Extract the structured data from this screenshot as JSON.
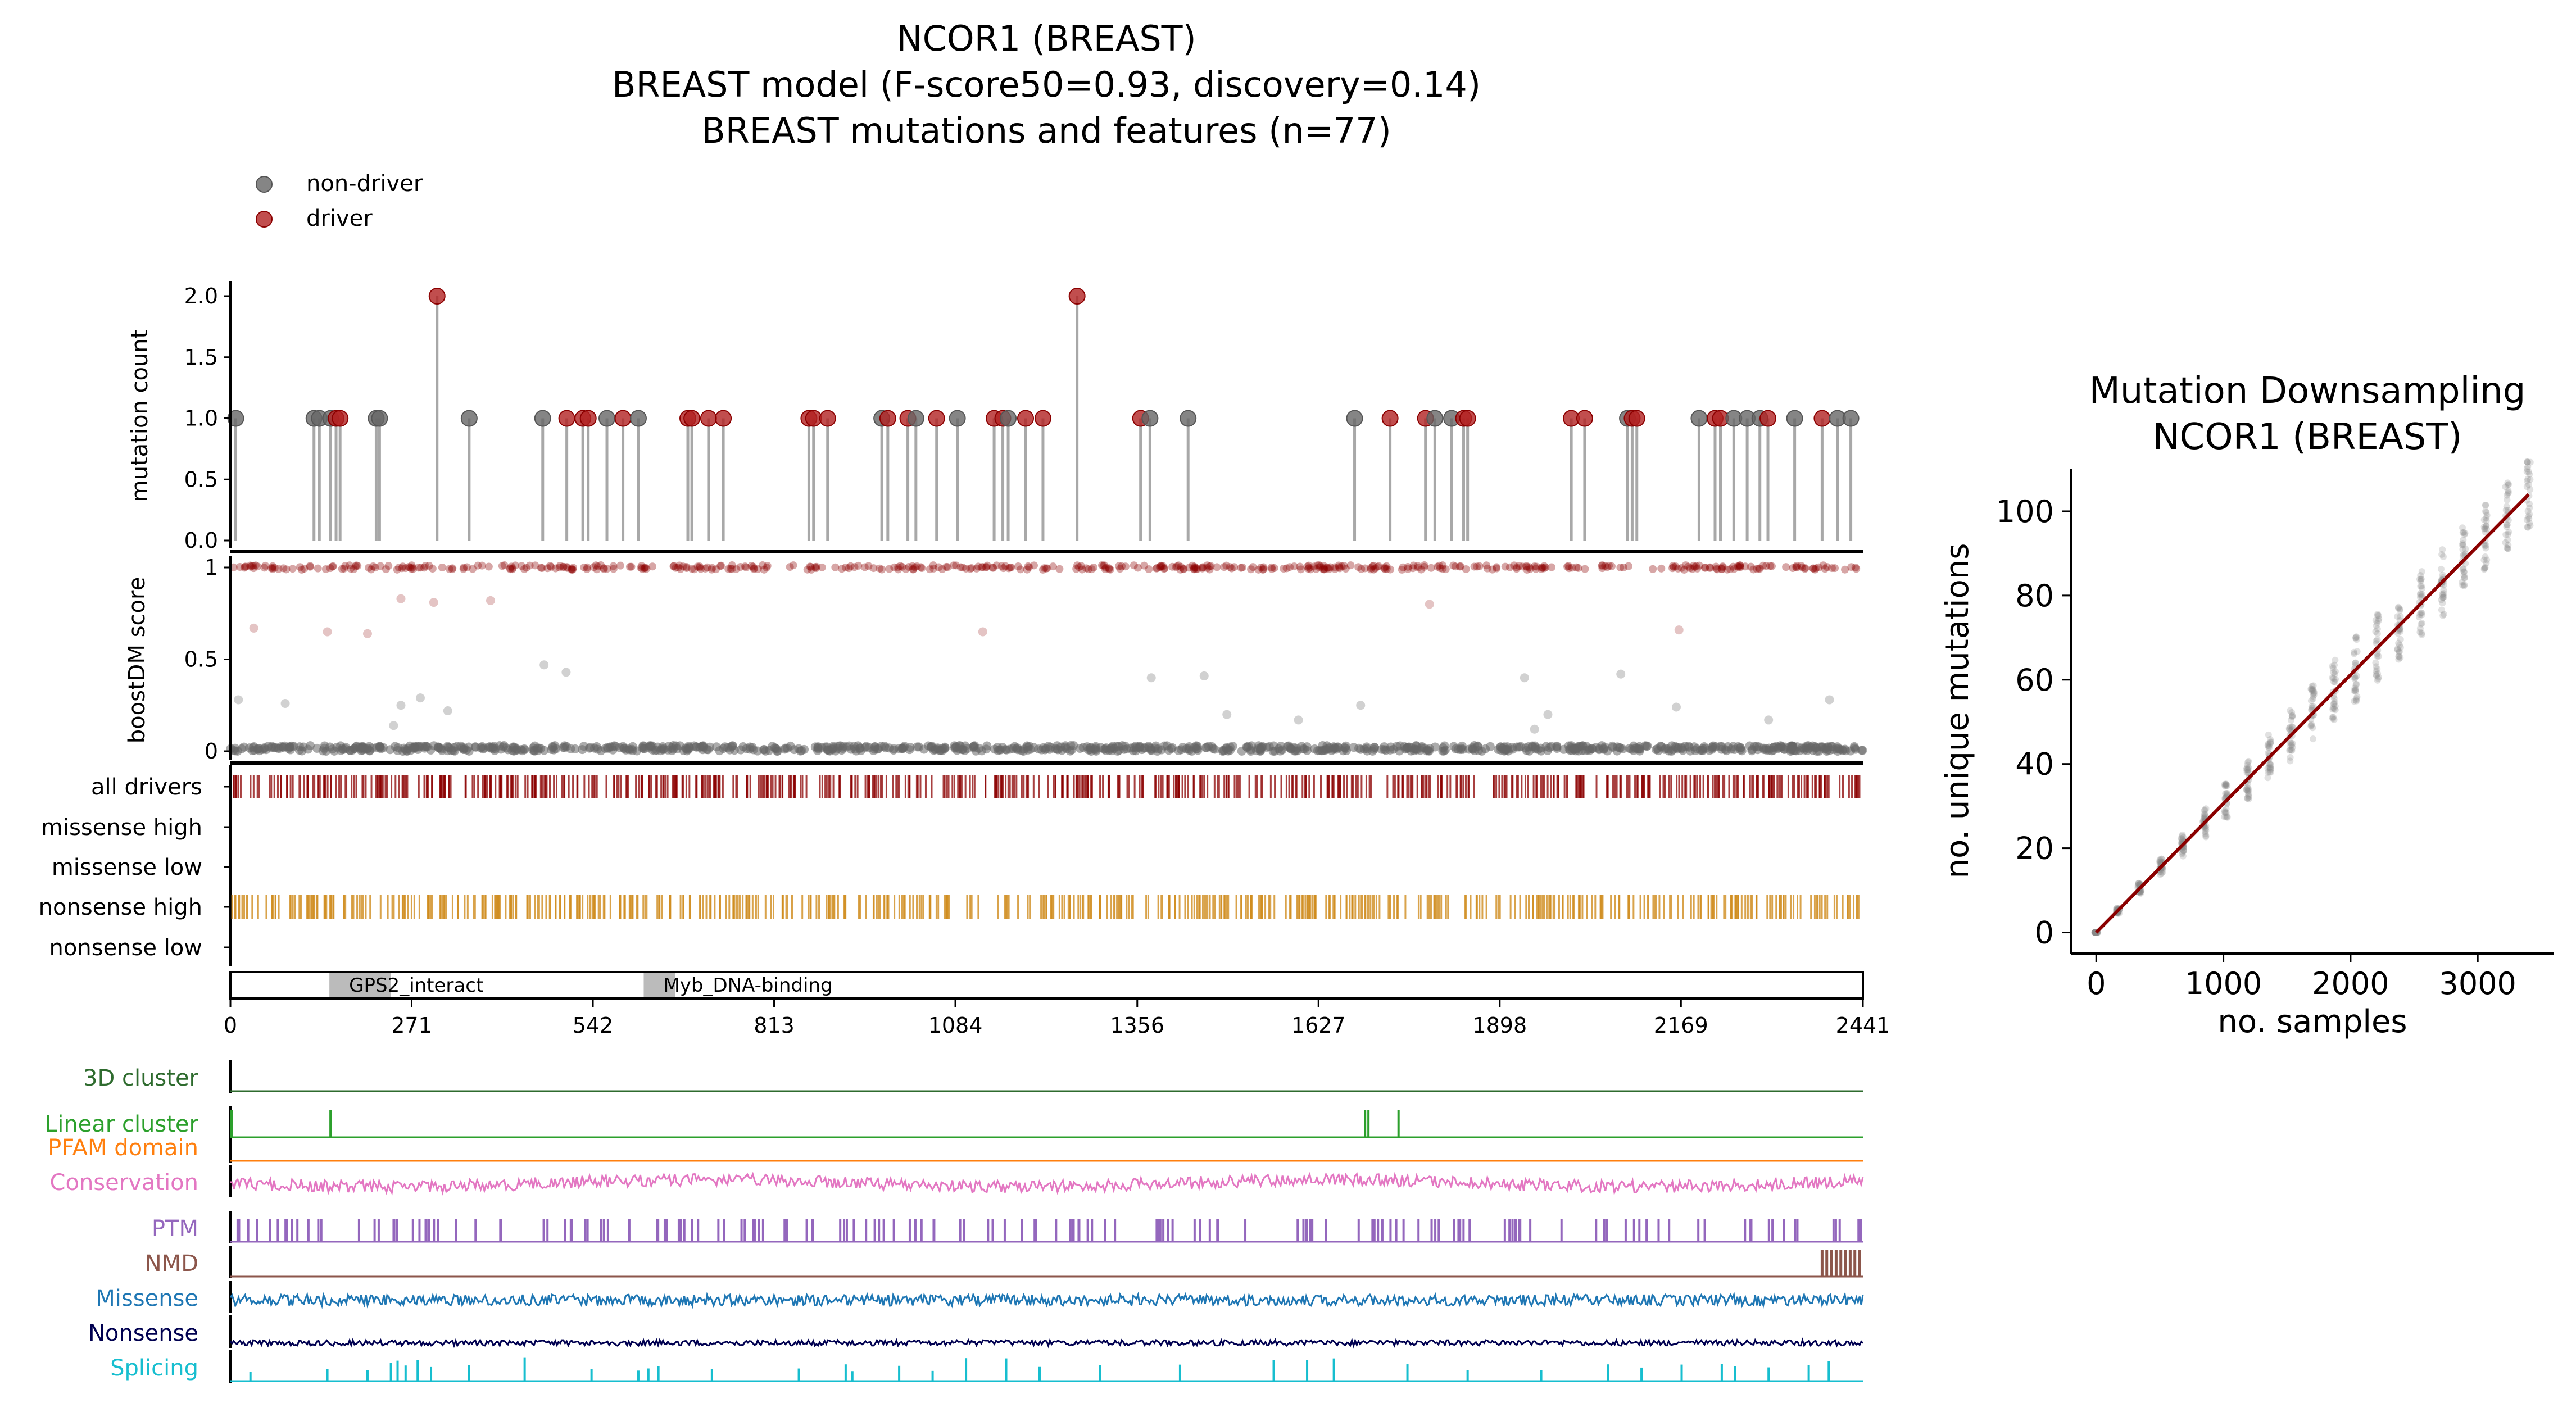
{
  "title": {
    "line1": "NCOR1 (BREAST)",
    "line2": "BREAST model (F-score50=0.93, discovery=0.14)",
    "line3": "BREAST mutations and features (n=77)"
  },
  "legend": {
    "non_driver": "non-driver",
    "driver": "driver"
  },
  "colors": {
    "driver": "#b22222",
    "non_driver": "#666666",
    "track_driver": "#8b0000",
    "nonsense_high": "#d08c1e",
    "cluster3d": "#2e6b2e",
    "linear": "#2ca02c",
    "pfam": "#ff7f0e",
    "conservation": "#e377c2",
    "ptm": "#9467bd",
    "nmd": "#8c564b",
    "missense": "#1f77b4",
    "nonsense": "#000050",
    "splicing": "#17becf",
    "fit_line": "#8b0000"
  },
  "chart_data": [
    {
      "type": "scatter",
      "name": "lollipop",
      "ylabel": "mutation count",
      "xlim": [
        0,
        2441
      ],
      "ylim": [
        0,
        2.0
      ],
      "yticks": [
        "0.0",
        "0.5",
        "1.0",
        "1.5",
        "2.0"
      ],
      "points": [
        {
          "x": 8,
          "y": 1,
          "driver": false
        },
        {
          "x": 125,
          "y": 1,
          "driver": false
        },
        {
          "x": 133,
          "y": 1,
          "driver": false
        },
        {
          "x": 150,
          "y": 1,
          "driver": false
        },
        {
          "x": 158,
          "y": 1,
          "driver": true
        },
        {
          "x": 164,
          "y": 1,
          "driver": true
        },
        {
          "x": 218,
          "y": 1,
          "driver": false
        },
        {
          "x": 223,
          "y": 1,
          "driver": false
        },
        {
          "x": 309,
          "y": 2,
          "driver": true
        },
        {
          "x": 357,
          "y": 1,
          "driver": false
        },
        {
          "x": 467,
          "y": 1,
          "driver": false
        },
        {
          "x": 503,
          "y": 1,
          "driver": true
        },
        {
          "x": 527,
          "y": 1,
          "driver": true
        },
        {
          "x": 535,
          "y": 1,
          "driver": true
        },
        {
          "x": 563,
          "y": 1,
          "driver": false
        },
        {
          "x": 587,
          "y": 1,
          "driver": true
        },
        {
          "x": 610,
          "y": 1,
          "driver": false
        },
        {
          "x": 684,
          "y": 1,
          "driver": true
        },
        {
          "x": 690,
          "y": 1,
          "driver": true
        },
        {
          "x": 715,
          "y": 1,
          "driver": true
        },
        {
          "x": 737,
          "y": 1,
          "driver": true
        },
        {
          "x": 865,
          "y": 1,
          "driver": true
        },
        {
          "x": 872,
          "y": 1,
          "driver": true
        },
        {
          "x": 893,
          "y": 1,
          "driver": true
        },
        {
          "x": 974,
          "y": 1,
          "driver": false
        },
        {
          "x": 983,
          "y": 1,
          "driver": true
        },
        {
          "x": 1013,
          "y": 1,
          "driver": true
        },
        {
          "x": 1025,
          "y": 1,
          "driver": false
        },
        {
          "x": 1056,
          "y": 1,
          "driver": true
        },
        {
          "x": 1087,
          "y": 1,
          "driver": false
        },
        {
          "x": 1142,
          "y": 1,
          "driver": true
        },
        {
          "x": 1155,
          "y": 1,
          "driver": true
        },
        {
          "x": 1163,
          "y": 1,
          "driver": false
        },
        {
          "x": 1189,
          "y": 1,
          "driver": true
        },
        {
          "x": 1215,
          "y": 1,
          "driver": true
        },
        {
          "x": 1266,
          "y": 2,
          "driver": true
        },
        {
          "x": 1361,
          "y": 1,
          "driver": true
        },
        {
          "x": 1375,
          "y": 1,
          "driver": false
        },
        {
          "x": 1432,
          "y": 1,
          "driver": false
        },
        {
          "x": 1681,
          "y": 1,
          "driver": false
        },
        {
          "x": 1734,
          "y": 1,
          "driver": true
        },
        {
          "x": 1787,
          "y": 1,
          "driver": true
        },
        {
          "x": 1801,
          "y": 1,
          "driver": false
        },
        {
          "x": 1826,
          "y": 1,
          "driver": false
        },
        {
          "x": 1844,
          "y": 1,
          "driver": true
        },
        {
          "x": 1850,
          "y": 1,
          "driver": true
        },
        {
          "x": 2005,
          "y": 1,
          "driver": true
        },
        {
          "x": 2025,
          "y": 1,
          "driver": true
        },
        {
          "x": 2089,
          "y": 1,
          "driver": false
        },
        {
          "x": 2096,
          "y": 1,
          "driver": true
        },
        {
          "x": 2103,
          "y": 1,
          "driver": true
        },
        {
          "x": 2196,
          "y": 1,
          "driver": false
        },
        {
          "x": 2220,
          "y": 1,
          "driver": true
        },
        {
          "x": 2228,
          "y": 1,
          "driver": true
        },
        {
          "x": 2248,
          "y": 1,
          "driver": false
        },
        {
          "x": 2268,
          "y": 1,
          "driver": false
        },
        {
          "x": 2287,
          "y": 1,
          "driver": false
        },
        {
          "x": 2299,
          "y": 1,
          "driver": true
        },
        {
          "x": 2339,
          "y": 1,
          "driver": false
        },
        {
          "x": 2380,
          "y": 1,
          "driver": true
        },
        {
          "x": 2403,
          "y": 1,
          "driver": false
        },
        {
          "x": 2423,
          "y": 1,
          "driver": false
        }
      ]
    },
    {
      "type": "scatter",
      "name": "boostdm",
      "ylabel": "boostDM score",
      "xlim": [
        0,
        2441
      ],
      "ylim": [
        0,
        1
      ],
      "yticks": [
        "0",
        "0.5",
        "1"
      ],
      "scattered_points": [
        {
          "x": 35,
          "y": 0.67,
          "driver": true
        },
        {
          "x": 145,
          "y": 0.65,
          "driver": true
        },
        {
          "x": 205,
          "y": 0.64,
          "driver": true
        },
        {
          "x": 255,
          "y": 0.83,
          "driver": true
        },
        {
          "x": 304,
          "y": 0.81,
          "driver": true
        },
        {
          "x": 389,
          "y": 0.82,
          "driver": true
        },
        {
          "x": 1125,
          "y": 0.65,
          "driver": true
        },
        {
          "x": 1793,
          "y": 0.8,
          "driver": true
        },
        {
          "x": 2166,
          "y": 0.66,
          "driver": true
        },
        {
          "x": 12,
          "y": 0.28,
          "driver": false
        },
        {
          "x": 82,
          "y": 0.26,
          "driver": false
        },
        {
          "x": 244,
          "y": 0.14,
          "driver": false
        },
        {
          "x": 255,
          "y": 0.25,
          "driver": false
        },
        {
          "x": 284,
          "y": 0.29,
          "driver": false
        },
        {
          "x": 325,
          "y": 0.22,
          "driver": false
        },
        {
          "x": 469,
          "y": 0.47,
          "driver": false
        },
        {
          "x": 502,
          "y": 0.43,
          "driver": false
        },
        {
          "x": 1377,
          "y": 0.4,
          "driver": false
        },
        {
          "x": 1456,
          "y": 0.41,
          "driver": false
        },
        {
          "x": 1490,
          "y": 0.2,
          "driver": false
        },
        {
          "x": 1597,
          "y": 0.17,
          "driver": false
        },
        {
          "x": 1690,
          "y": 0.25,
          "driver": false
        },
        {
          "x": 1935,
          "y": 0.4,
          "driver": false
        },
        {
          "x": 1950,
          "y": 0.12,
          "driver": false
        },
        {
          "x": 1970,
          "y": 0.2,
          "driver": false
        },
        {
          "x": 2079,
          "y": 0.42,
          "driver": false
        },
        {
          "x": 2162,
          "y": 0.24,
          "driver": false
        },
        {
          "x": 2391,
          "y": 0.28,
          "driver": false
        },
        {
          "x": 2300,
          "y": 0.17,
          "driver": false
        }
      ]
    },
    {
      "type": "heatmap",
      "name": "tracks",
      "rows": [
        "all drivers",
        "missense high",
        "missense low",
        "nonsense high",
        "nonsense low"
      ]
    },
    {
      "type": "bar",
      "name": "domains",
      "domains": [
        {
          "label": "GPS2_interact",
          "start": 148,
          "end": 240
        },
        {
          "label": "Myb_DNA-binding",
          "start": 618,
          "end": 665
        }
      ],
      "xticks": [
        "0",
        "271",
        "542",
        "813",
        "1084",
        "1356",
        "1627",
        "1898",
        "2169",
        "2441"
      ],
      "xlim": [
        0,
        2441
      ]
    },
    {
      "type": "line",
      "name": "features",
      "rows": [
        "3D cluster",
        "Linear cluster",
        "PFAM domain",
        "Conservation",
        "PTM",
        "NMD",
        "Missense",
        "Nonsense",
        "Splicing"
      ],
      "linear_cluster_peaks": [
        0,
        148,
        1695,
        1700,
        1745
      ],
      "nmd_start": 2380,
      "splicing_peaks": [
        30,
        145,
        205,
        240,
        250,
        262,
        280,
        300,
        357,
        440,
        540,
        610,
        625,
        640,
        720,
        850,
        920,
        930,
        1000,
        1050,
        1100,
        1160,
        1210,
        1300,
        1420,
        1560,
        1610,
        1650,
        1760,
        1850,
        1960,
        2060,
        2110,
        2170,
        2230,
        2250,
        2300,
        2360,
        2390
      ],
      "xlim": [
        0,
        2441
      ]
    },
    {
      "type": "scatter",
      "name": "downsampling",
      "title": "Mutation Downsampling",
      "subtitle": "NCOR1 (BREAST)",
      "xlabel": "no. samples",
      "ylabel": "no. unique mutations",
      "xlim": [
        -200,
        3600
      ],
      "ylim": [
        -5,
        110
      ],
      "xticks": [
        0,
        1000,
        2000,
        3000
      ],
      "yticks": [
        0,
        20,
        40,
        60,
        80,
        100
      ],
      "fit_line": [
        [
          0,
          0
        ],
        [
          3400,
          104
        ]
      ],
      "sample_x": [
        0,
        170,
        340,
        510,
        680,
        850,
        1020,
        1190,
        1360,
        1530,
        1700,
        1870,
        2040,
        2210,
        2380,
        2550,
        2720,
        2890,
        3060,
        3230,
        3400
      ]
    }
  ]
}
